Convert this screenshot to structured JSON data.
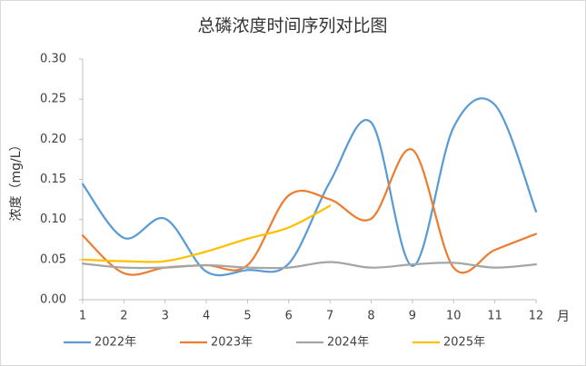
{
  "chart_data": {
    "type": "line",
    "title": "总磷浓度时间序列对比图",
    "y_label": "浓度（mg/L）",
    "x_label": "月",
    "x": [
      1,
      2,
      3,
      4,
      5,
      6,
      7,
      8,
      9,
      10,
      11,
      12
    ],
    "xlim": [
      1,
      12
    ],
    "xticks": [
      1,
      2,
      3,
      4,
      5,
      6,
      7,
      8,
      9,
      10,
      11,
      12
    ],
    "ylim": [
      0,
      0.3
    ],
    "yticks": [
      {
        "value": 0,
        "label": "0.00"
      },
      0.05,
      {
        "value": 0.1,
        "label": "0.10"
      },
      0.15,
      {
        "value": 0.2,
        "label": "0.20"
      },
      0.25,
      {
        "value": 0.3,
        "label": "0.30"
      }
    ],
    "smooth": true,
    "series": [
      {
        "name": "2022年",
        "color": "#5b9bd5",
        "values": [
          0.144,
          0.077,
          0.101,
          0.035,
          0.037,
          0.045,
          0.147,
          0.221,
          0.042,
          0.215,
          0.243,
          0.11
        ]
      },
      {
        "name": "2023年",
        "color": "#ed7d31",
        "values": [
          0.08,
          0.033,
          0.04,
          0.043,
          0.043,
          0.13,
          0.125,
          0.101,
          0.187,
          0.04,
          0.062,
          0.082
        ]
      },
      {
        "name": "2024年",
        "color": "#a5a5a5",
        "values": [
          0.045,
          0.04,
          0.04,
          0.043,
          0.04,
          0.04,
          0.047,
          0.04,
          0.044,
          0.046,
          0.04,
          0.044
        ]
      },
      {
        "name": "2025年",
        "color": "#ffc000",
        "values": [
          0.05,
          0.048,
          0.048,
          0.06,
          0.076,
          0.09,
          0.117,
          null,
          null,
          null,
          null,
          null
        ]
      }
    ]
  }
}
